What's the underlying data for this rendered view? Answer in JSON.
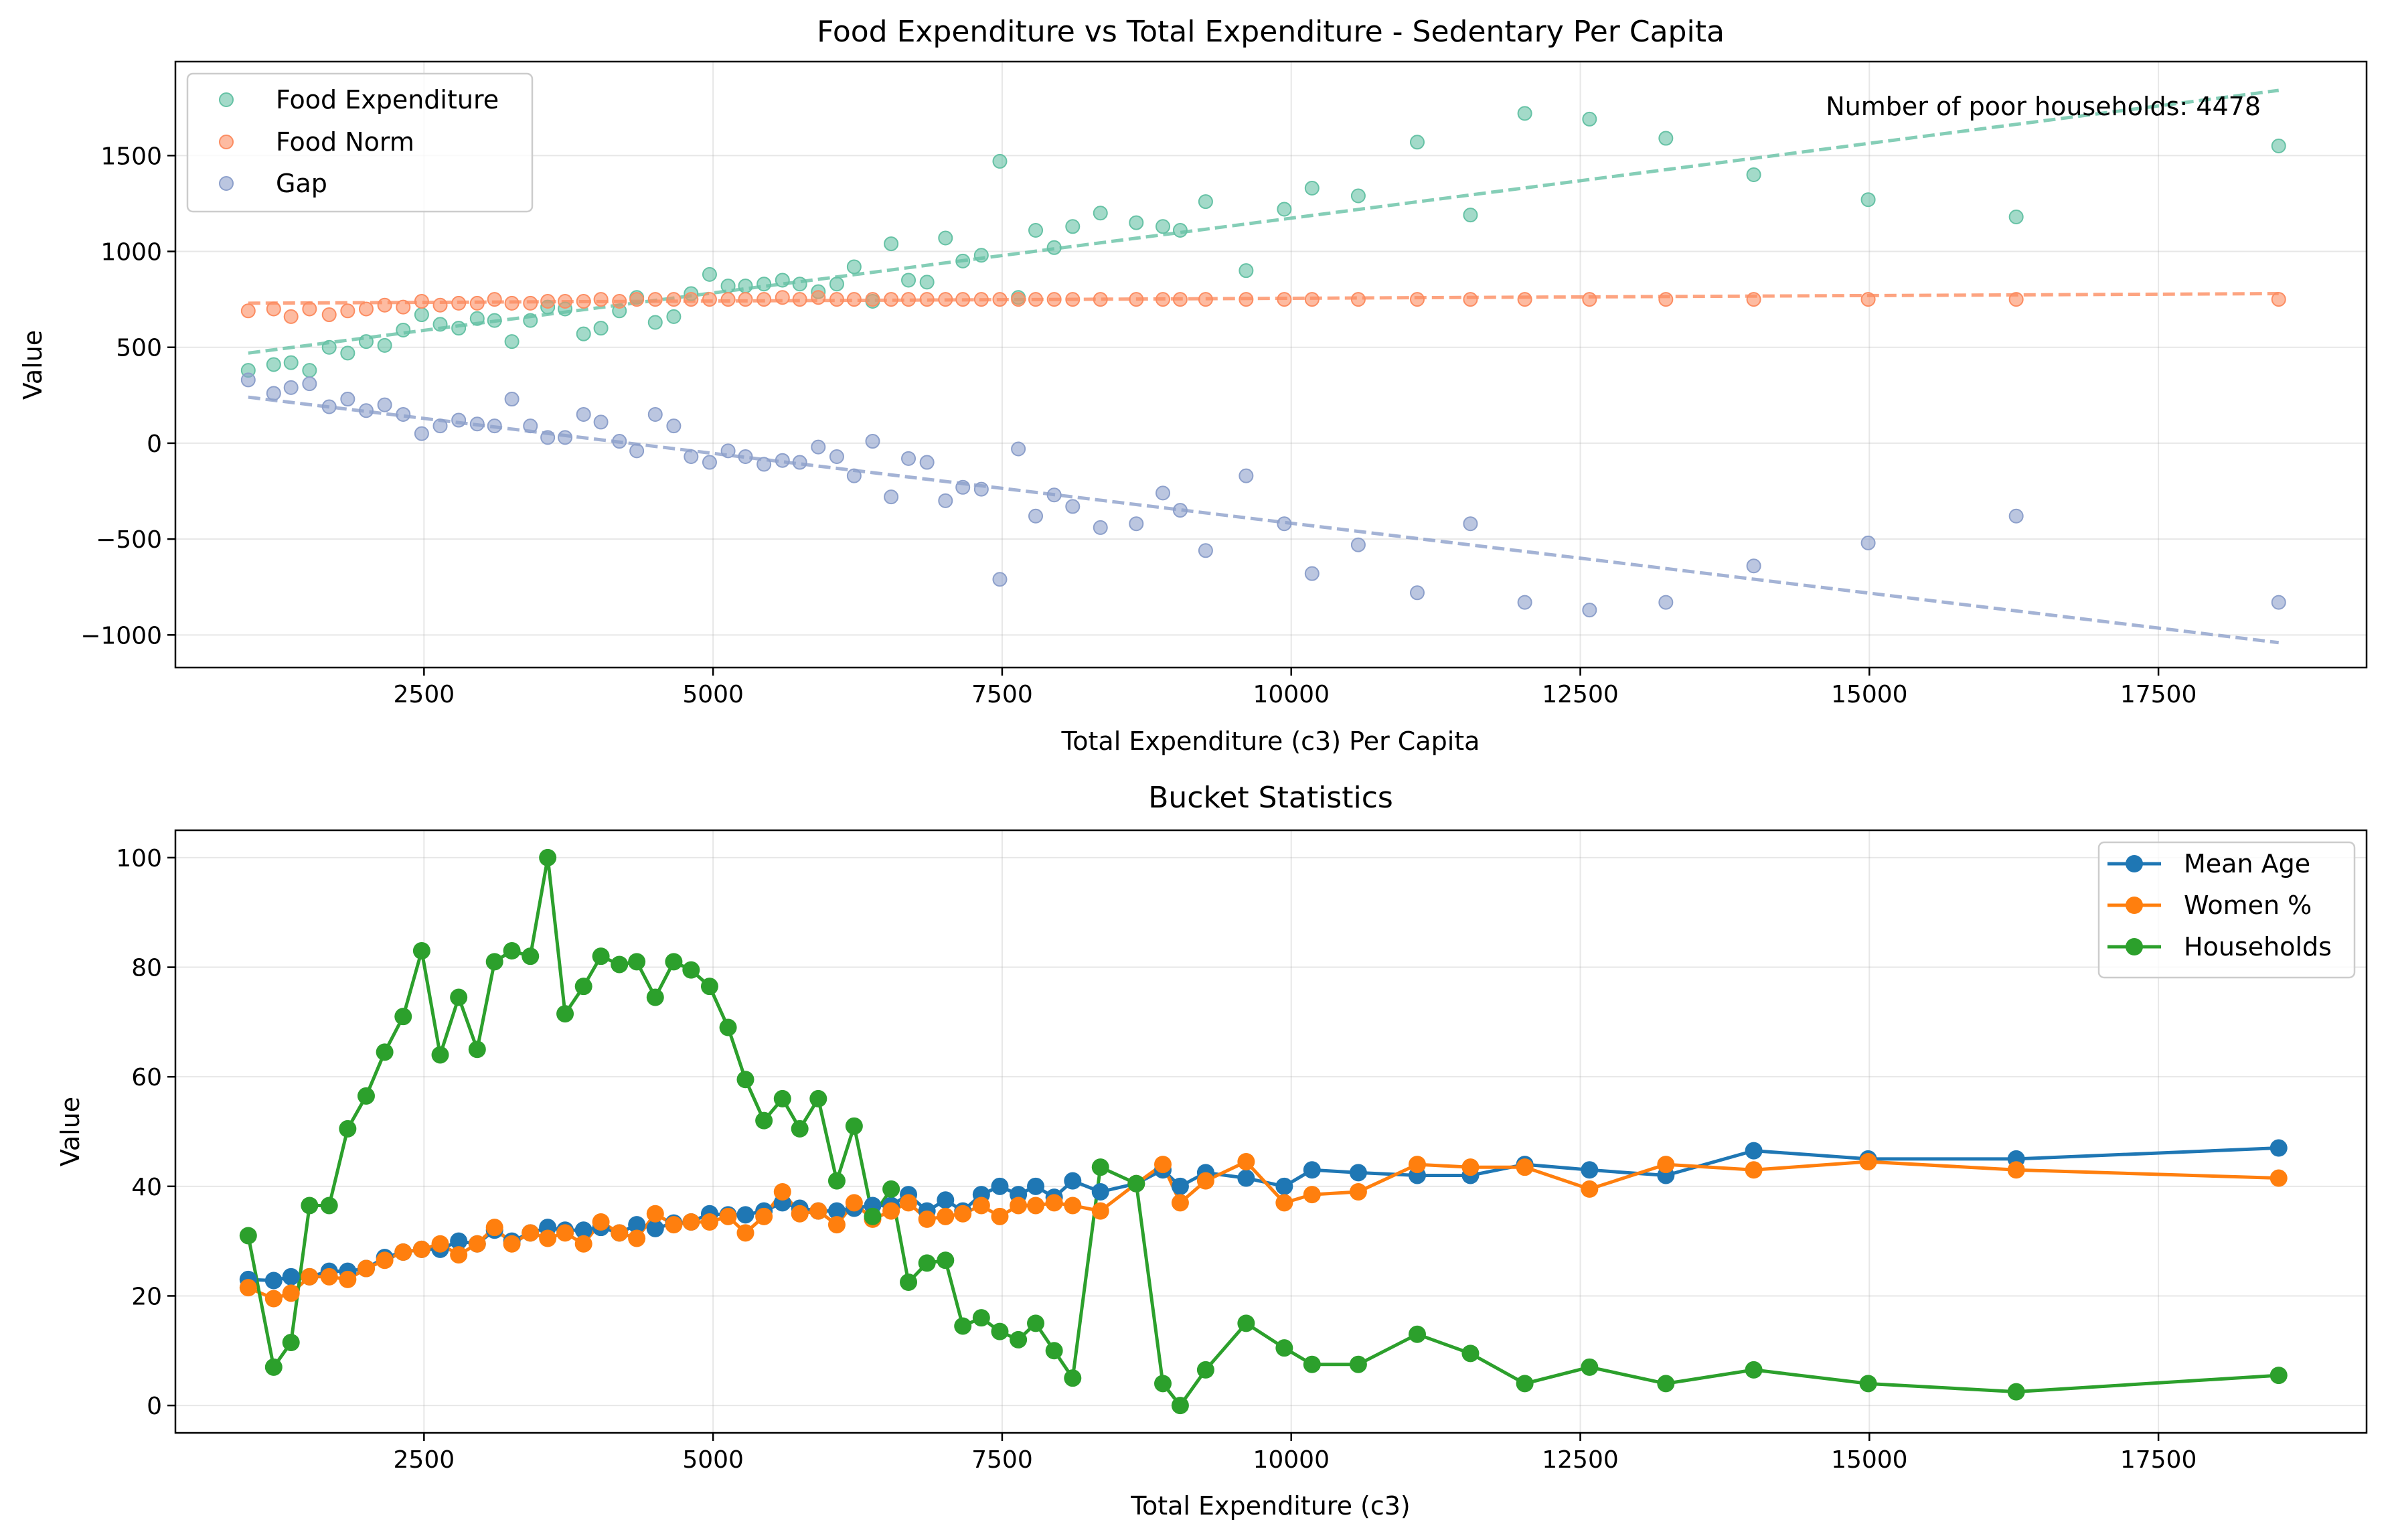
{
  "chart_data": [
    {
      "type": "scatter",
      "title": "Food Expenditure vs Total Expenditure - Sedentary Per Capita",
      "xlabel": "Total Expenditure (c3) Per Capita",
      "ylabel": "Value",
      "xlim": [
        350,
        19300
      ],
      "ylim": [
        -1170,
        1990
      ],
      "xticks": [
        2500,
        5000,
        7500,
        10000,
        12500,
        15000,
        17500
      ],
      "yticks": [
        -1000,
        -500,
        0,
        500,
        1000,
        1500
      ],
      "grid": true,
      "legend_position": "upper-left",
      "annotation": "Number of poor households: 4478",
      "x": [
        980,
        1200,
        1350,
        1510,
        1680,
        1840,
        2000,
        2160,
        2320,
        2480,
        2640,
        2800,
        2960,
        3110,
        3260,
        3420,
        3570,
        3720,
        3880,
        4030,
        4190,
        4340,
        4500,
        4660,
        4810,
        4970,
        5130,
        5280,
        5440,
        5600,
        5750,
        5910,
        6070,
        6220,
        6380,
        6540,
        6690,
        6850,
        7010,
        7160,
        7320,
        7480,
        7640,
        7790,
        7950,
        8110,
        8350,
        8660,
        8890,
        9040,
        9260,
        9610,
        9940,
        10180,
        10580,
        11090,
        11550,
        12020,
        12580,
        13240,
        14000,
        14990,
        16270,
        18540
      ],
      "series": [
        {
          "name": "Food Expenditure",
          "color": "#66c2a5",
          "values": [
            380,
            410,
            420,
            380,
            500,
            470,
            530,
            510,
            590,
            670,
            620,
            600,
            650,
            640,
            530,
            640,
            710,
            700,
            570,
            600,
            690,
            760,
            630,
            660,
            780,
            880,
            820,
            820,
            830,
            850,
            830,
            790,
            830,
            920,
            740,
            1040,
            850,
            840,
            1070,
            950,
            980,
            1470,
            760,
            1110,
            1020,
            1130,
            1200,
            1150,
            1130,
            1110,
            1260,
            900,
            1220,
            1330,
            1290,
            1570,
            1190,
            1720,
            1690,
            1590,
            1400,
            1270,
            1180,
            1550
          ],
          "trend": [
            470,
            1840
          ]
        },
        {
          "name": "Food Norm",
          "color": "#fc8d62",
          "values": [
            690,
            700,
            660,
            700,
            670,
            690,
            700,
            720,
            710,
            740,
            720,
            730,
            730,
            750,
            730,
            730,
            740,
            740,
            740,
            750,
            740,
            750,
            750,
            750,
            750,
            750,
            750,
            750,
            750,
            760,
            750,
            760,
            750,
            750,
            750,
            750,
            750,
            750,
            750,
            750,
            750,
            750,
            750,
            750,
            750,
            750,
            750,
            750,
            750,
            750,
            750,
            750,
            750,
            750,
            750,
            750,
            750,
            750,
            750,
            750,
            750,
            750,
            750,
            750
          ],
          "trend": [
            730,
            780
          ]
        },
        {
          "name": "Gap",
          "color": "#8da0cb",
          "values": [
            330,
            260,
            290,
            310,
            190,
            230,
            170,
            200,
            150,
            50,
            90,
            120,
            100,
            90,
            230,
            90,
            30,
            30,
            150,
            110,
            10,
            -40,
            150,
            90,
            -70,
            -100,
            -40,
            -70,
            -110,
            -90,
            -100,
            -20,
            -70,
            -170,
            10,
            -280,
            -80,
            -100,
            -300,
            -230,
            -240,
            -710,
            -30,
            -380,
            -270,
            -330,
            -440,
            -420,
            -260,
            -350,
            -560,
            -170,
            -420,
            -680,
            -530,
            -780,
            -420,
            -830,
            -870,
            -830,
            -640,
            -520,
            -380,
            -830
          ],
          "trend": [
            240,
            -1040
          ]
        }
      ]
    },
    {
      "type": "line",
      "title": "Bucket Statistics",
      "xlabel": "Total Expenditure (c3)",
      "ylabel": "Value",
      "xlim": [
        350,
        19300
      ],
      "ylim": [
        -5,
        105
      ],
      "xticks": [
        2500,
        5000,
        7500,
        10000,
        12500,
        15000,
        17500
      ],
      "yticks": [
        0,
        20,
        40,
        60,
        80,
        100
      ],
      "grid": true,
      "legend_position": "upper-right",
      "x": [
        980,
        1200,
        1350,
        1510,
        1680,
        1840,
        2000,
        2160,
        2320,
        2480,
        2640,
        2800,
        2960,
        3110,
        3260,
        3420,
        3570,
        3720,
        3880,
        4030,
        4190,
        4340,
        4500,
        4660,
        4810,
        4970,
        5130,
        5280,
        5440,
        5600,
        5750,
        5910,
        6070,
        6220,
        6380,
        6540,
        6690,
        6850,
        7010,
        7160,
        7320,
        7480,
        7640,
        7790,
        7950,
        8110,
        8350,
        8660,
        8890,
        9040,
        9260,
        9610,
        9940,
        10180,
        10580,
        11090,
        11550,
        12020,
        12580,
        13240,
        14000,
        14990,
        16270,
        18540
      ],
      "series": [
        {
          "name": "Mean Age",
          "color": "#1f77b4",
          "values": [
            23,
            22.8,
            23.5,
            23.5,
            24.5,
            24.5,
            25,
            27,
            28,
            28.5,
            28.5,
            30,
            29.5,
            32,
            30,
            31.5,
            32.5,
            32,
            32,
            32.5,
            31.5,
            33,
            32.3,
            33.3,
            33.5,
            35,
            34.8,
            34.8,
            35.5,
            37,
            36,
            35.5,
            35.5,
            36,
            36.5,
            36.5,
            38.5,
            35.5,
            37.5,
            35.5,
            38.5,
            40,
            38.5,
            40,
            38,
            41,
            39,
            40.5,
            43,
            40,
            42.5,
            41.5,
            40,
            43,
            42.5,
            42,
            42,
            44,
            43,
            42,
            46.5,
            45,
            45,
            47
          ],
          "markers": true
        },
        {
          "name": "Women %",
          "color": "#ff7f0e",
          "values": [
            21.5,
            19.5,
            20.5,
            23.5,
            23.5,
            23,
            25,
            26.5,
            28,
            28.5,
            29.5,
            27.5,
            29.5,
            32.5,
            29.5,
            31.5,
            30.5,
            31.5,
            29.5,
            33.5,
            31.5,
            30.5,
            35,
            33,
            33.5,
            33.5,
            34.5,
            31.5,
            34.5,
            39,
            35,
            35.5,
            33,
            37,
            34,
            35.5,
            37,
            34,
            34.5,
            35,
            36.5,
            34.5,
            36.5,
            36.5,
            37,
            36.5,
            35.5,
            40.5,
            44,
            37,
            41,
            44.5,
            37,
            38.5,
            39,
            44,
            43.5,
            43.5,
            39.5,
            44,
            43,
            44.5,
            43,
            41.5
          ],
          "markers": true
        },
        {
          "name": "Households",
          "color": "#2ca02c",
          "values": [
            31,
            7,
            11.5,
            36.5,
            36.5,
            50.5,
            56.5,
            64.5,
            71,
            83,
            64,
            74.5,
            65,
            81,
            83,
            82,
            100,
            71.5,
            76.5,
            82,
            80.5,
            81,
            74.5,
            81,
            79.5,
            76.5,
            69,
            59.5,
            52,
            56,
            50.5,
            56,
            41,
            51,
            34.5,
            39.5,
            22.5,
            26,
            26.5,
            14.5,
            16,
            13.5,
            12,
            15,
            10,
            5,
            43.5,
            40.5,
            4,
            0,
            6.5,
            15,
            10.5,
            7.5,
            7.5,
            13,
            9.5,
            4,
            7,
            4,
            6.5,
            4,
            2.5,
            5.5
          ],
          "markers": true
        }
      ]
    }
  ]
}
